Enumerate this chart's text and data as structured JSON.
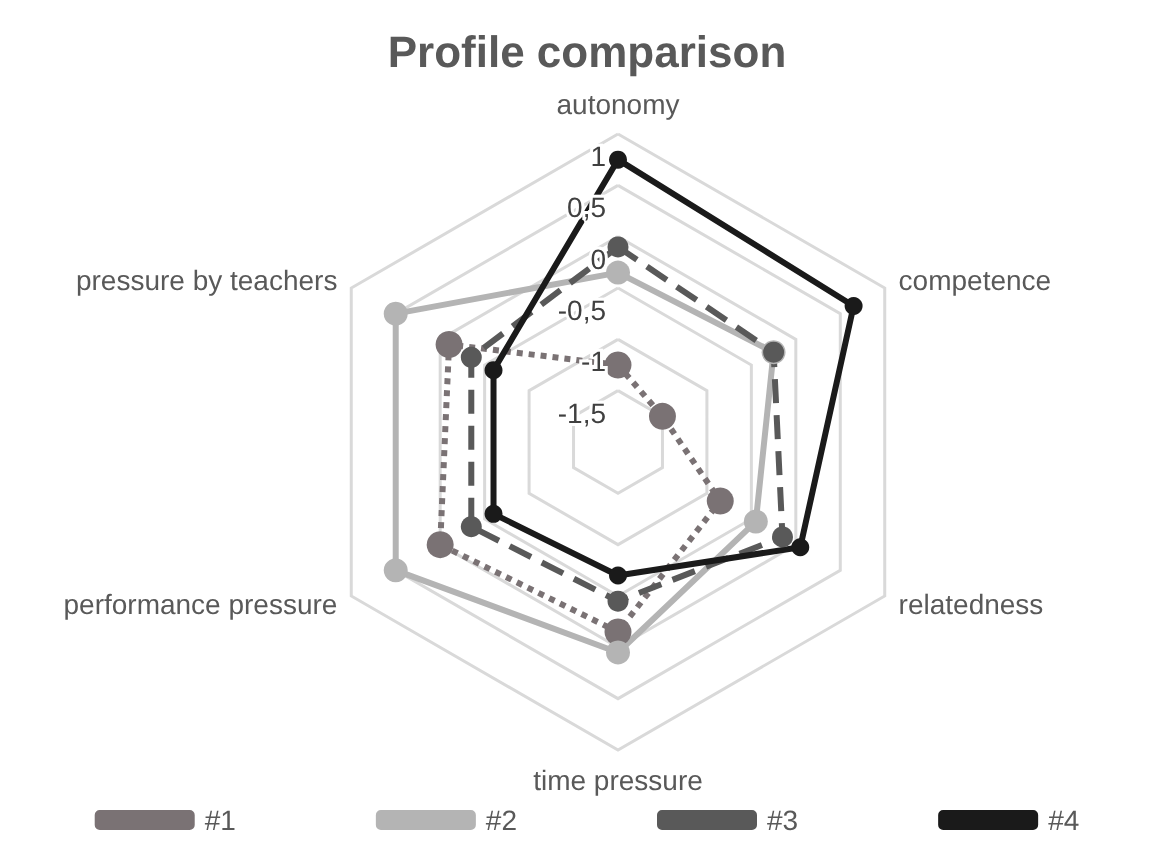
{
  "chart_data": {
    "type": "radar",
    "title": "Profile comparison",
    "categories": [
      "autonomy",
      "competence",
      "relatedness",
      "time pressure",
      "performance pressure",
      "pressure by teachers"
    ],
    "ylim": [
      -2,
      1
    ],
    "yticks": [
      1,
      {
        "value": 0.5,
        "label": "0,5"
      },
      0,
      {
        "value": -0.5,
        "label": "-0,5"
      },
      {
        "value": -1,
        "label": "-1"
      },
      {
        "value": -1.5,
        "label": "-1,5"
      }
    ],
    "grid": true,
    "legend": "bottom",
    "marker": "circle",
    "series": [
      {
        "name": "#1",
        "color": "#7a7274",
        "line_style": "dotted",
        "values": [
          -1.25,
          -1.5,
          -0.85,
          -0.15,
          0,
          -0.1
        ]
      },
      {
        "name": "#2",
        "color": "#b4b4b4",
        "line_style": "solid",
        "values": [
          -0.35,
          -0.25,
          -0.45,
          0.05,
          0.5,
          0.5
        ]
      },
      {
        "name": "#3",
        "color": "#595959",
        "line_style": "dashed",
        "values": [
          -0.1,
          -0.25,
          -0.15,
          -0.45,
          -0.35,
          -0.35
        ]
      },
      {
        "name": "#4",
        "color": "#1a1a1a",
        "line_style": "solid",
        "values": [
          0.75,
          0.65,
          0.05,
          -0.7,
          -0.6,
          -0.6
        ]
      }
    ]
  }
}
